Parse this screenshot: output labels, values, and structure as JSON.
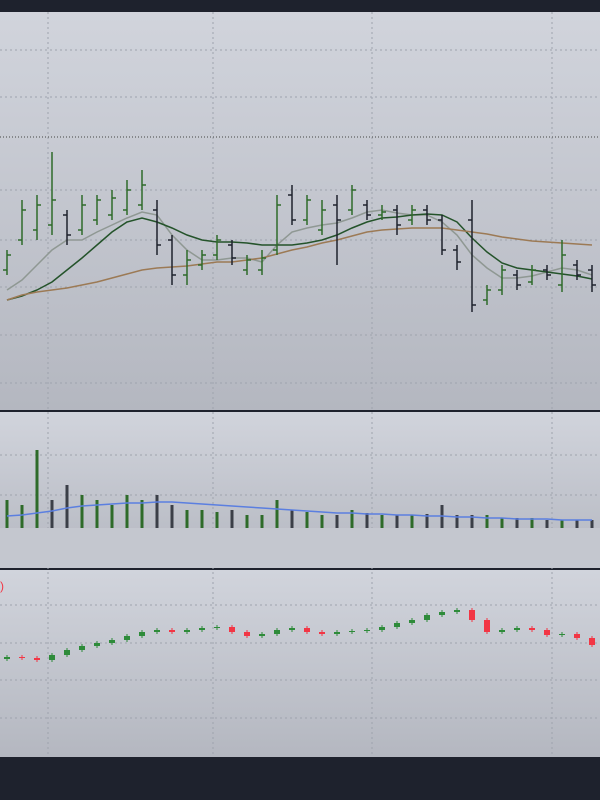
{
  "chart_data": [
    {
      "type": "ohlc",
      "up_color": "#2e6b2a",
      "down_color": "#1e222d",
      "ylim": [
        0,
        398
      ],
      "open": [
        140,
        170,
        180,
        185,
        195,
        180,
        190,
        195,
        200,
        205,
        200,
        170,
        135,
        145,
        155,
        165,
        140,
        140,
        160,
        215,
        190,
        180,
        205,
        200,
        205,
        195,
        200,
        190,
        200,
        190,
        160,
        190,
        110,
        120,
        135,
        128,
        140,
        125,
        145,
        140
      ],
      "high": [
        160,
        210,
        215,
        258,
        200,
        215,
        215,
        220,
        230,
        240,
        210,
        175,
        160,
        160,
        175,
        170,
        155,
        160,
        215,
        225,
        215,
        210,
        215,
        225,
        210,
        205,
        205,
        205,
        205,
        195,
        165,
        210,
        125,
        145,
        140,
        145,
        145,
        170,
        150,
        145
      ],
      "low": [
        135,
        165,
        170,
        175,
        165,
        175,
        185,
        190,
        195,
        200,
        155,
        125,
        125,
        140,
        150,
        145,
        135,
        135,
        155,
        185,
        185,
        175,
        145,
        195,
        190,
        190,
        175,
        185,
        185,
        155,
        140,
        98,
        105,
        115,
        120,
        125,
        130,
        118,
        130,
        118
      ],
      "close": [
        155,
        200,
        205,
        210,
        175,
        205,
        210,
        212,
        220,
        225,
        165,
        135,
        150,
        155,
        170,
        152,
        150,
        152,
        205,
        190,
        210,
        200,
        190,
        220,
        195,
        198,
        185,
        200,
        190,
        160,
        148,
        105,
        120,
        140,
        125,
        140,
        135,
        155,
        135,
        125
      ],
      "lines": [
        {
          "color": "#8f9893",
          "values": [
            120,
            130,
            145,
            160,
            170,
            170,
            178,
            185,
            192,
            198,
            195,
            175,
            160,
            150,
            150,
            152,
            152,
            148,
            165,
            178,
            182,
            185,
            187,
            192,
            198,
            200,
            197,
            195,
            195,
            188,
            175,
            155,
            142,
            132,
            132,
            134,
            138,
            142,
            140,
            135
          ]
        },
        {
          "color": "#24532a",
          "values": [
            110,
            114,
            120,
            128,
            140,
            152,
            165,
            178,
            188,
            192,
            188,
            182,
            175,
            170,
            168,
            168,
            167,
            165,
            165,
            165,
            167,
            170,
            175,
            182,
            188,
            192,
            193,
            195,
            196,
            195,
            188,
            172,
            158,
            147,
            142,
            140,
            138,
            136,
            134,
            131
          ]
        },
        {
          "color": "#9c7a55",
          "values": [
            110,
            115,
            118,
            120,
            122,
            125,
            128,
            132,
            136,
            140,
            142,
            143,
            144,
            146,
            148,
            148,
            150,
            152,
            156,
            160,
            163,
            167,
            170,
            174,
            178,
            180,
            181,
            182,
            182,
            182,
            180,
            178,
            176,
            173,
            171,
            169,
            168,
            167,
            166,
            165
          ]
        }
      ]
    },
    {
      "type": "bar",
      "ylim": [
        0,
        116
      ],
      "up_color": "#2e6b2a",
      "down_color": "#3b3f48",
      "values": [
        28,
        23,
        78,
        28,
        43,
        33,
        28,
        23,
        33,
        28,
        33,
        23,
        18,
        18,
        16,
        18,
        13,
        13,
        28,
        18,
        16,
        13,
        13,
        18,
        15,
        13,
        13,
        13,
        14,
        23,
        13,
        13,
        13,
        10,
        10,
        10,
        8,
        8,
        8,
        8
      ],
      "directions": [
        "up",
        "up",
        "up",
        "down",
        "down",
        "up",
        "up",
        "up",
        "up",
        "up",
        "down",
        "down",
        "up",
        "up",
        "up",
        "down",
        "up",
        "up",
        "up",
        "down",
        "up",
        "up",
        "down",
        "up",
        "down",
        "up",
        "down",
        "up",
        "down",
        "down",
        "down",
        "down",
        "up",
        "up",
        "down",
        "up",
        "down",
        "up",
        "down",
        "down"
      ],
      "average": {
        "color": "#5b7fe0",
        "values": [
          12,
          13,
          15,
          17,
          20,
          22,
          23,
          24,
          25,
          25,
          26,
          26,
          25,
          24,
          23,
          22,
          21,
          20,
          19,
          18,
          17,
          16,
          15,
          15,
          14,
          14,
          13,
          13,
          12,
          12,
          11,
          11,
          10,
          10,
          9,
          9,
          9,
          8,
          8,
          8
        ]
      }
    },
    {
      "type": "candlestick",
      "annotation": ")",
      "annotation_color": "#f23645",
      "ylim": [
        0,
        187
      ],
      "up_color": "#2e8b3a",
      "down_color": "#f23645",
      "open": [
        98,
        100,
        99,
        97,
        102,
        107,
        111,
        114,
        117,
        121,
        125,
        127,
        125,
        127,
        129,
        130,
        125,
        121,
        123,
        127,
        129,
        125,
        123,
        125,
        126,
        127,
        130,
        134,
        137,
        142,
        145,
        147,
        137,
        125,
        127,
        129,
        127,
        122,
        123,
        119
      ],
      "high": [
        102,
        102,
        101,
        104,
        109,
        113,
        116,
        119,
        123,
        127,
        129,
        129,
        129,
        131,
        132,
        132,
        127,
        125,
        129,
        131,
        131,
        127,
        127,
        128,
        129,
        132,
        136,
        139,
        144,
        147,
        149,
        149,
        139,
        129,
        131,
        131,
        129,
        125,
        125,
        121
      ],
      "low": [
        96,
        97,
        95,
        95,
        100,
        105,
        109,
        112,
        115,
        119,
        123,
        123,
        123,
        125,
        127,
        123,
        119,
        119,
        121,
        125,
        123,
        121,
        121,
        123,
        124,
        125,
        128,
        132,
        135,
        140,
        143,
        135,
        123,
        123,
        125,
        125,
        120,
        120,
        117,
        110
      ],
      "close": [
        100,
        99,
        97,
        102,
        107,
        111,
        114,
        117,
        121,
        125,
        127,
        125,
        127,
        129,
        130,
        125,
        121,
        123,
        127,
        129,
        125,
        123,
        125,
        126,
        127,
        130,
        134,
        137,
        142,
        145,
        147,
        137,
        125,
        127,
        129,
        127,
        122,
        123,
        119,
        112
      ]
    }
  ]
}
